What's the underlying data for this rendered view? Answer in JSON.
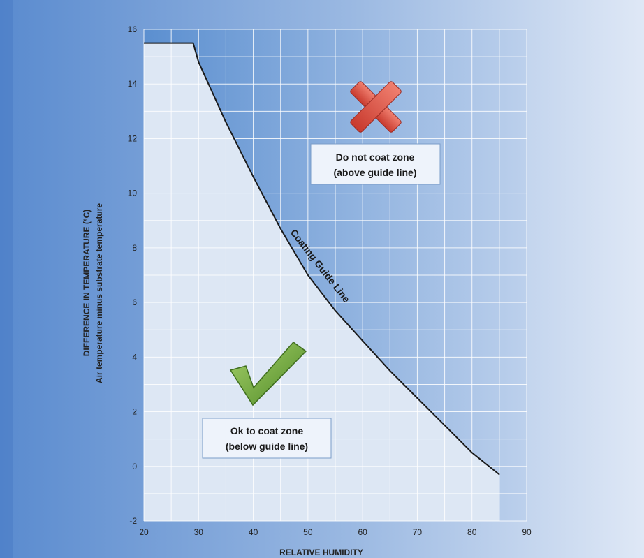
{
  "chart_data": {
    "type": "line",
    "xlabel": "RELATIVE HUMIDITY",
    "ylabel": "DIFFERENCE IN TEMPERATURE (°C)",
    "ylabel_sub": "Air temperature minus substrate temperature",
    "xlim": [
      20,
      90
    ],
    "ylim": [
      -2,
      16
    ],
    "x_ticks": [
      20,
      30,
      40,
      50,
      60,
      70,
      80,
      90
    ],
    "y_ticks": [
      -2,
      0,
      2,
      4,
      6,
      8,
      10,
      12,
      14,
      16
    ],
    "grid": true,
    "series": [
      {
        "name": "Coating Guide Line",
        "x": [
          20,
          29,
          30,
          35,
          40,
          45,
          50,
          55,
          60,
          65,
          70,
          75,
          80,
          85
        ],
        "y": [
          15.5,
          15.5,
          14.8,
          12.6,
          10.6,
          8.7,
          7.0,
          5.7,
          4.6,
          3.5,
          2.5,
          1.5,
          0.5,
          -0.3
        ]
      }
    ],
    "annotations": {
      "above": {
        "line1": "Do not coat zone",
        "line2": "(above guide line)",
        "icon": "cross-icon",
        "color": "#d9443a"
      },
      "below": {
        "line1": "Ok to coat zone",
        "line2": "(below guide line)",
        "icon": "check-icon",
        "color": "#6ea13a"
      }
    },
    "colors": {
      "above_zone_left": "#5b8fd0",
      "above_zone_right": "#c8d8ee",
      "below_zone": "#dde7f4",
      "line": "#1a1a1a",
      "grid": "#ffffff"
    }
  }
}
